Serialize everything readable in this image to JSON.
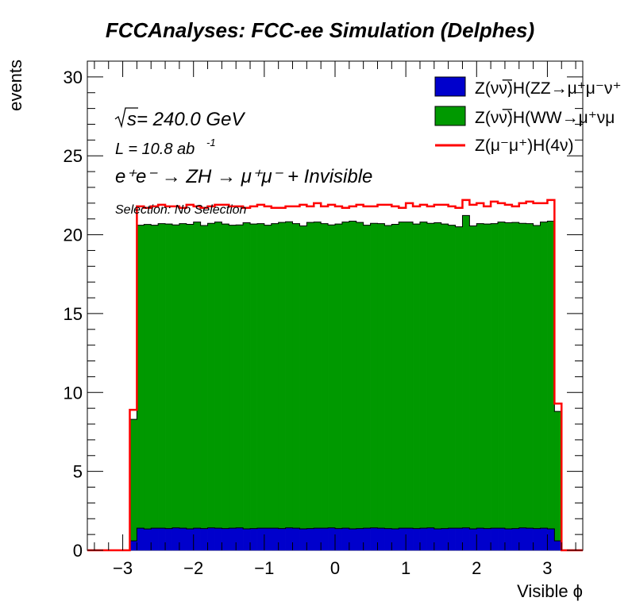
{
  "chart_data": {
    "type": "bar",
    "title": "FCCAnalyses: FCC-ee Simulation (Delphes)",
    "xlabel": "Visible ϕ",
    "ylabel": "events",
    "xlim": [
      -3.5,
      3.5
    ],
    "ylim": [
      0,
      31
    ],
    "x_ticks": [
      -3,
      -2,
      -1,
      0,
      1,
      2,
      3
    ],
    "x_tick_labels": [
      "−3",
      "−2",
      "−1",
      "0",
      "1",
      "2",
      "3"
    ],
    "y_ticks": [
      0,
      5,
      10,
      15,
      20,
      25,
      30
    ],
    "y_tick_labels": [
      "0",
      "5",
      "10",
      "15",
      "20",
      "25",
      "30"
    ],
    "bins": {
      "x_min": -3.5,
      "x_max": 3.5,
      "count": 70
    },
    "series": [
      {
        "name": "Z(νν̅)H(ZZ→μ⁺μ⁻ν⁺ν⁻)",
        "legend_label": "Z(νν̅)H(ZZ→μ⁺μ⁻ν⁺",
        "style": "filled",
        "color": "#0000cc",
        "values": [
          0,
          0,
          0,
          0,
          0,
          0,
          0.6,
          1.4,
          1.35,
          1.4,
          1.4,
          1.38,
          1.42,
          1.4,
          1.36,
          1.4,
          1.38,
          1.42,
          1.4,
          1.38,
          1.4,
          1.42,
          1.36,
          1.38,
          1.4,
          1.4,
          1.4,
          1.38,
          1.42,
          1.4,
          1.36,
          1.38,
          1.4,
          1.4,
          1.42,
          1.38,
          1.4,
          1.36,
          1.38,
          1.4,
          1.42,
          1.4,
          1.38,
          1.36,
          1.4,
          1.4,
          1.38,
          1.4,
          1.42,
          1.36,
          1.38,
          1.4,
          1.4,
          1.42,
          1.36,
          1.4,
          1.38,
          1.4,
          1.4,
          1.36,
          1.38,
          1.42,
          1.4,
          1.38,
          1.4,
          1.36,
          0.6,
          0,
          0,
          0
        ]
      },
      {
        "name": "Z(νν̅)H(WW→μ⁺νμ⁻ν̅)",
        "legend_label": "Z(νν̅)H(WW→μ⁺νμ",
        "style": "filled-stacked",
        "color": "#009900",
        "values": [
          0,
          0,
          0,
          0,
          0,
          0,
          7.7,
          19.2,
          19.3,
          19.2,
          19.3,
          19.3,
          19.2,
          19.3,
          19.3,
          19.4,
          19.2,
          19.3,
          19.4,
          19.3,
          19.2,
          19.2,
          19.4,
          19.3,
          19.3,
          19.2,
          19.3,
          19.4,
          19.4,
          19.3,
          19.2,
          19.4,
          19.4,
          19.3,
          19.2,
          19.3,
          19.4,
          19.5,
          19.4,
          19.2,
          19.3,
          19.3,
          19.2,
          19.3,
          19.4,
          19.4,
          19.3,
          19.4,
          19.3,
          19.4,
          19.3,
          19.2,
          19.1,
          19.8,
          19.2,
          19.3,
          19.3,
          19.3,
          19.4,
          19.4,
          19.4,
          19.3,
          19.3,
          19.2,
          19.4,
          19.5,
          8.2,
          0,
          0,
          0
        ]
      },
      {
        "name": "Z(μ⁻μ⁺)H(4ν)",
        "legend_label": "Z(μ⁻μ⁺)H(4ν)",
        "style": "line",
        "color": "#ff0000",
        "values": [
          0,
          0,
          0,
          0,
          0,
          0,
          8.9,
          21.8,
          21.7,
          21.8,
          21.9,
          21.8,
          21.8,
          21.7,
          21.9,
          21.8,
          21.7,
          21.8,
          21.9,
          21.9,
          21.8,
          21.8,
          21.7,
          21.8,
          21.9,
          21.8,
          21.7,
          21.7,
          21.8,
          21.8,
          21.9,
          21.8,
          22.0,
          21.8,
          21.9,
          21.8,
          21.7,
          21.8,
          21.9,
          21.8,
          21.8,
          21.9,
          21.9,
          21.8,
          21.7,
          22.0,
          21.8,
          21.9,
          21.8,
          21.9,
          21.9,
          21.8,
          21.7,
          22.2,
          21.9,
          22.0,
          21.8,
          22.1,
          22.0,
          21.9,
          21.8,
          22.0,
          22.1,
          22.0,
          22.0,
          22.2,
          9.3,
          0,
          0,
          0
        ]
      }
    ],
    "legend_position": "top-right",
    "grid": false,
    "annotations": {
      "sqrt_s": "√s = 240.0 GeV",
      "sqrt_s_rest": " = 240.0 GeV",
      "lumi": "L = 10.8 ab⁻¹",
      "lumi_base": "L = 10.8 ab",
      "lumi_exp": "-1",
      "process": "e⁺e⁻ → ZH → μ⁺μ⁻ + Invisible",
      "selection": "Selection: No Selection"
    }
  }
}
